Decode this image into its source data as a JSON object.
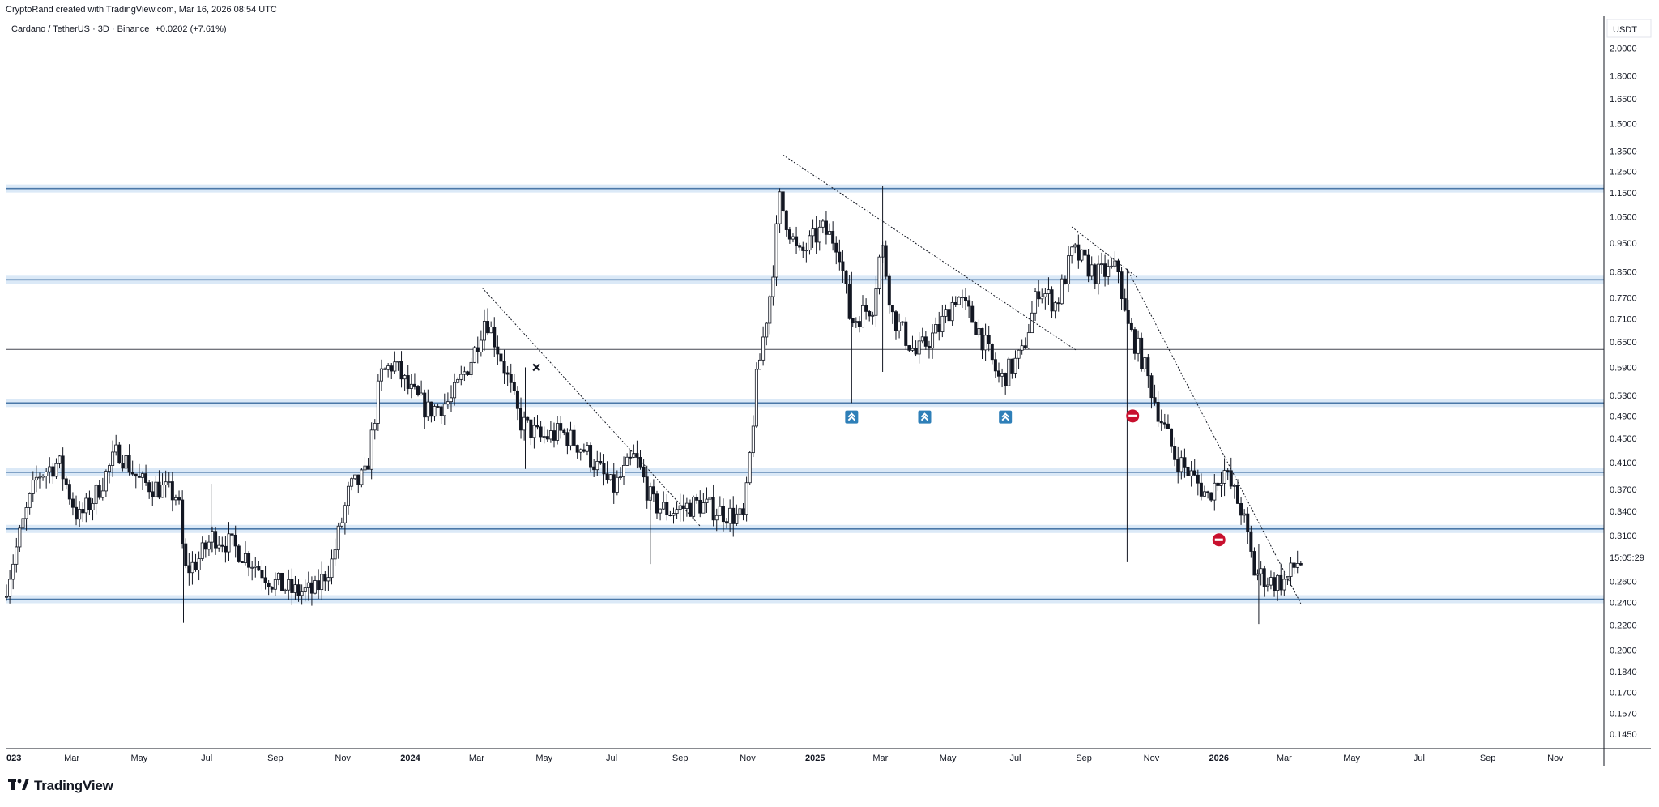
{
  "header": {
    "attribution": "CryptoRand created with TradingView.com, Mar 16, 2026 08:54 UTC"
  },
  "legend": {
    "symbol": "Cardano / TetherUS · 3D · Binance",
    "change": "+0.0202 (+7.61%)"
  },
  "brand": {
    "name": "TradingView",
    "logo_icon": "tradingview-logo-icon"
  },
  "chart_data": {
    "type": "candlestick",
    "title": "",
    "currency_label": "USDT",
    "y_scale": "log",
    "ylim": [
      0.138,
      2.1
    ],
    "y_ticks": [
      "2.0000",
      "1.8000",
      "1.6500",
      "1.5000",
      "1.3500",
      "1.2500",
      "1.1500",
      "1.0500",
      "0.9500",
      "0.8500",
      "0.7700",
      "0.7100",
      "0.6500",
      "0.5900",
      "0.5300",
      "0.4900",
      "0.4500",
      "0.4100",
      "0.3700",
      "0.3400",
      "0.3100",
      "0.2600",
      "0.2400",
      "0.2200",
      "0.2000",
      "0.1840",
      "0.1700",
      "0.1570",
      "0.1450"
    ],
    "countdown_label": "15:05:29",
    "x_axis_start": "2023-01-01",
    "x_axis_end": "2026-12-15",
    "x_ticks": [
      {
        "label": "023",
        "date": "2023-01-01",
        "bold": true
      },
      {
        "label": "Mar",
        "date": "2023-03-01"
      },
      {
        "label": "May",
        "date": "2023-05-01"
      },
      {
        "label": "Jul",
        "date": "2023-07-01"
      },
      {
        "label": "Sep",
        "date": "2023-09-01"
      },
      {
        "label": "Nov",
        "date": "2023-11-01"
      },
      {
        "label": "2024",
        "date": "2024-01-01",
        "bold": true
      },
      {
        "label": "Mar",
        "date": "2024-03-01"
      },
      {
        "label": "May",
        "date": "2024-05-01"
      },
      {
        "label": "Jul",
        "date": "2024-07-01"
      },
      {
        "label": "Sep",
        "date": "2024-09-01"
      },
      {
        "label": "Nov",
        "date": "2024-11-01"
      },
      {
        "label": "2025",
        "date": "2025-01-01",
        "bold": true
      },
      {
        "label": "Mar",
        "date": "2025-03-01"
      },
      {
        "label": "May",
        "date": "2025-05-01"
      },
      {
        "label": "Jul",
        "date": "2025-07-01"
      },
      {
        "label": "Sep",
        "date": "2025-09-01"
      },
      {
        "label": "Nov",
        "date": "2025-11-01"
      },
      {
        "label": "2026",
        "date": "2026-01-01",
        "bold": true
      },
      {
        "label": "Mar",
        "date": "2026-03-01"
      },
      {
        "label": "May",
        "date": "2026-05-01"
      },
      {
        "label": "Jul",
        "date": "2026-07-01"
      },
      {
        "label": "Sep",
        "date": "2026-09-01"
      },
      {
        "label": "Nov",
        "date": "2026-11-01"
      }
    ],
    "horizontal_zones": [
      {
        "price": 1.17,
        "style": "zone"
      },
      {
        "price": 0.825,
        "style": "zone"
      },
      {
        "price": 0.632,
        "style": "line"
      },
      {
        "price": 0.515,
        "style": "zone"
      },
      {
        "price": 0.395,
        "style": "zone"
      },
      {
        "price": 0.318,
        "style": "zone"
      },
      {
        "price": 0.243,
        "style": "zone"
      }
    ],
    "trendlines": [
      {
        "from": [
          "2024-03-06",
          0.8
        ],
        "to": [
          "2024-09-20",
          0.32
        ]
      },
      {
        "from": [
          "2024-12-03",
          1.33
        ],
        "to": [
          "2025-08-25",
          0.63
        ]
      },
      {
        "from": [
          "2025-08-21",
          1.01
        ],
        "to": [
          "2025-10-20",
          0.83
        ]
      },
      {
        "from": [
          "2025-10-10",
          0.86
        ],
        "to": [
          "2026-03-16",
          0.239
        ]
      }
    ],
    "price_path": [
      [
        "2023-01-01",
        0.245
      ],
      [
        "2023-01-20",
        0.33
      ],
      [
        "2023-02-01",
        0.39
      ],
      [
        "2023-02-20",
        0.41
      ],
      [
        "2023-03-10",
        0.33
      ],
      [
        "2023-03-25",
        0.36
      ],
      [
        "2023-04-15",
        0.43
      ],
      [
        "2023-05-05",
        0.38
      ],
      [
        "2023-05-25",
        0.37
      ],
      [
        "2023-06-08",
        0.36
      ],
      [
        "2023-06-14",
        0.27
      ],
      [
        "2023-06-25",
        0.28
      ],
      [
        "2023-07-10",
        0.31
      ],
      [
        "2023-07-25",
        0.3
      ],
      [
        "2023-08-15",
        0.28
      ],
      [
        "2023-09-01",
        0.26
      ],
      [
        "2023-09-20",
        0.25
      ],
      [
        "2023-10-10",
        0.25
      ],
      [
        "2023-10-25",
        0.28
      ],
      [
        "2023-11-10",
        0.37
      ],
      [
        "2023-11-25",
        0.39
      ],
      [
        "2023-12-08",
        0.57
      ],
      [
        "2023-12-20",
        0.6
      ],
      [
        "2024-01-03",
        0.54
      ],
      [
        "2024-01-20",
        0.5
      ],
      [
        "2024-02-10",
        0.52
      ],
      [
        "2024-03-01",
        0.62
      ],
      [
        "2024-03-12",
        0.72
      ],
      [
        "2024-03-28",
        0.6
      ],
      [
        "2024-04-12",
        0.48
      ],
      [
        "2024-05-01",
        0.45
      ],
      [
        "2024-05-20",
        0.46
      ],
      [
        "2024-06-10",
        0.43
      ],
      [
        "2024-07-05",
        0.37
      ],
      [
        "2024-07-25",
        0.42
      ],
      [
        "2024-08-10",
        0.35
      ],
      [
        "2024-08-25",
        0.34
      ],
      [
        "2024-09-20",
        0.35
      ],
      [
        "2024-10-10",
        0.34
      ],
      [
        "2024-11-01",
        0.33
      ],
      [
        "2024-11-12",
        0.56
      ],
      [
        "2024-11-25",
        0.8
      ],
      [
        "2024-12-03",
        1.12
      ],
      [
        "2024-12-20",
        0.9
      ],
      [
        "2025-01-10",
        1.0
      ],
      [
        "2025-01-25",
        0.95
      ],
      [
        "2025-02-05",
        0.7
      ],
      [
        "2025-02-25",
        0.75
      ],
      [
        "2025-03-05",
        0.95
      ],
      [
        "2025-03-15",
        0.72
      ],
      [
        "2025-04-05",
        0.62
      ],
      [
        "2025-04-25",
        0.68
      ],
      [
        "2025-05-12",
        0.78
      ],
      [
        "2025-06-01",
        0.68
      ],
      [
        "2025-06-20",
        0.56
      ],
      [
        "2025-07-10",
        0.62
      ],
      [
        "2025-07-25",
        0.8
      ],
      [
        "2025-08-10",
        0.75
      ],
      [
        "2025-08-25",
        0.92
      ],
      [
        "2025-09-15",
        0.84
      ],
      [
        "2025-10-05",
        0.86
      ],
      [
        "2025-10-12",
        0.7
      ],
      [
        "2025-10-25",
        0.62
      ],
      [
        "2025-11-10",
        0.5
      ],
      [
        "2025-11-25",
        0.42
      ],
      [
        "2025-12-10",
        0.39
      ],
      [
        "2025-12-25",
        0.36
      ],
      [
        "2026-01-08",
        0.4
      ],
      [
        "2026-01-25",
        0.34
      ],
      [
        "2026-02-05",
        0.27
      ],
      [
        "2026-02-20",
        0.26
      ],
      [
        "2026-03-05",
        0.26
      ],
      [
        "2026-03-16",
        0.28
      ]
    ],
    "wicks": [
      {
        "date": "2023-06-10",
        "low": 0.222,
        "high": 0.3
      },
      {
        "date": "2023-07-05",
        "low": 0.29,
        "high": 0.378
      },
      {
        "date": "2024-04-14",
        "low": 0.4,
        "high": 0.59
      },
      {
        "date": "2024-08-05",
        "low": 0.278,
        "high": 0.36
      },
      {
        "date": "2025-02-03",
        "low": 0.515,
        "high": 0.85
      },
      {
        "date": "2025-03-03",
        "low": 0.58,
        "high": 1.18
      },
      {
        "date": "2025-10-10",
        "low": 0.28,
        "high": 0.86
      },
      {
        "date": "2026-02-06",
        "low": 0.221,
        "high": 0.3
      }
    ],
    "markers": [
      {
        "date": "2024-04-24",
        "price": 0.59,
        "kind": "x-mark"
      },
      {
        "date": "2025-02-03",
        "price": 0.488,
        "kind": "long-entry"
      },
      {
        "date": "2025-04-10",
        "price": 0.488,
        "kind": "long-entry"
      },
      {
        "date": "2025-06-22",
        "price": 0.488,
        "kind": "long-entry"
      },
      {
        "date": "2025-10-15",
        "price": 0.49,
        "kind": "no-entry"
      },
      {
        "date": "2026-01-01",
        "price": 0.305,
        "kind": "no-entry"
      }
    ],
    "colors": {
      "candle_up_fill": "#ffffff",
      "candle_down_fill": "#131722",
      "candle_border": "#131722",
      "zone_fill": "#dbe9f7",
      "zone_line": "#4a78a8",
      "level_line": "#434651",
      "trendline": "#131722",
      "long_marker": "#2e7fb8",
      "no_entry_marker": "#c8102e"
    }
  }
}
